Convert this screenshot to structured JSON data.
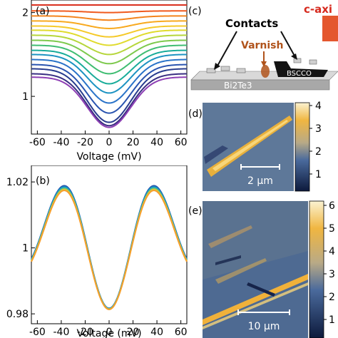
{
  "chart_data": [
    {
      "panel": "(a)",
      "type": "line",
      "title": "",
      "xlabel": "Voltage (mV)",
      "ylabel": "",
      "xlim": [
        -65,
        65
      ],
      "ylim": [
        0.55,
        2.15
      ],
      "xticks": [
        -60,
        -40,
        -20,
        0,
        20,
        40,
        60
      ],
      "yticks": [
        1,
        2
      ],
      "series": [
        {
          "color": "#d92f1e",
          "baseline": 2.09,
          "dip": 0.0
        },
        {
          "color": "#f05a1e",
          "baseline": 2.02,
          "dip": 0.02
        },
        {
          "color": "#f4841c",
          "baseline": 1.96,
          "dip": 0.05
        },
        {
          "color": "#f8a91e",
          "baseline": 1.9,
          "dip": 0.09
        },
        {
          "color": "#f5c928",
          "baseline": 1.84,
          "dip": 0.13
        },
        {
          "color": "#e0db2d",
          "baseline": 1.79,
          "dip": 0.18
        },
        {
          "color": "#b6d63a",
          "baseline": 1.73,
          "dip": 0.23
        },
        {
          "color": "#7dc94c",
          "baseline": 1.67,
          "dip": 0.28
        },
        {
          "color": "#3fbd72",
          "baseline": 1.61,
          "dip": 0.34
        },
        {
          "color": "#19ac9a",
          "baseline": 1.55,
          "dip": 0.4
        },
        {
          "color": "#1d93c2",
          "baseline": 1.5,
          "dip": 0.46
        },
        {
          "color": "#2a73c9",
          "baseline": 1.44,
          "dip": 0.52
        },
        {
          "color": "#2a54b0",
          "baseline": 1.38,
          "dip": 0.58
        },
        {
          "color": "#283c8e",
          "baseline": 1.33,
          "dip": 0.64
        },
        {
          "color": "#3a2f82",
          "baseline": 1.27,
          "dip": 0.62
        },
        {
          "color": "#8e3fb4",
          "baseline": 1.23,
          "dip": 0.6
        }
      ]
    },
    {
      "panel": "(b)",
      "type": "line",
      "title": "",
      "xlabel": "Voltage (mV)",
      "ylabel": "",
      "xlim": [
        -65,
        65
      ],
      "ylim": [
        0.977,
        1.025
      ],
      "xticks": [
        -60,
        -40,
        -20,
        0,
        20,
        40,
        60
      ],
      "yticks": [
        0.98,
        1,
        1.02
      ],
      "ytick_labels": [
        "0.98",
        "1",
        "1.02"
      ],
      "series": [
        {
          "color": "#1f4fa8",
          "offset": 0.0016
        },
        {
          "color": "#1f76c0",
          "offset": 0.0011
        },
        {
          "color": "#1c9cc6",
          "offset": 0.0006
        },
        {
          "color": "#33b6a0",
          "offset": 0.0001
        },
        {
          "color": "#8ec85a",
          "offset": -0.0004
        },
        {
          "color": "#e6c43a",
          "offset": -0.0009
        },
        {
          "color": "#f59e2c",
          "offset": -0.0014
        }
      ]
    }
  ],
  "labels": {
    "panel_a": "(a)",
    "panel_b": "(b)",
    "panel_c": "(c)",
    "panel_d": "(d)",
    "panel_e": "(e)",
    "contacts": "Contacts",
    "varnish": "Varnish",
    "bscco": "BSCCO",
    "bi2te3": "Bi2Te3",
    "c_axis": "c-axi",
    "scalebar_d": "2 μm",
    "scalebar_e": "10 μm"
  },
  "colorbars": {
    "d": {
      "ticks": [
        "4",
        "3",
        "2",
        "1"
      ]
    },
    "e": {
      "ticks": [
        "6",
        "5",
        "4",
        "3",
        "2",
        "1"
      ]
    }
  },
  "colors": {
    "contacts_text": "#111111",
    "varnish_text": "#b0531b",
    "c_axis_text": "#d62a1e",
    "arrow": "#e4572e"
  }
}
